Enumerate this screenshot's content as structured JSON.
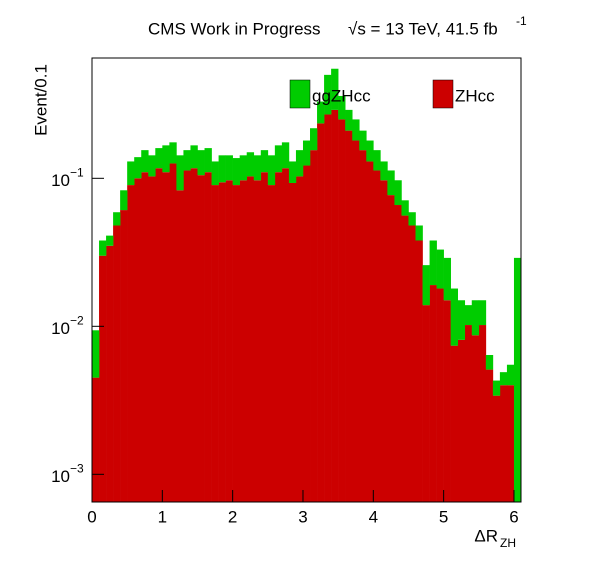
{
  "chart_data": {
    "type": "histogram",
    "stacked": true,
    "title": "CMS Work in Progress",
    "lumi": "√s = 13 TeV, 41.5 fb",
    "lumi_exponent": "-1",
    "x_label": "ΔR",
    "x_label_sub": "ZH",
    "y_label": "Event/0.1",
    "log_y": true,
    "legend": "top",
    "bins": [
      0,
      0.1,
      0.2,
      0.3,
      0.4,
      0.5,
      0.6,
      0.7,
      0.8,
      0.9,
      1,
      1.1,
      1.2,
      1.3,
      1.4,
      1.5,
      1.6,
      1.7,
      1.8,
      1.9,
      2,
      2.1,
      2.2,
      2.3,
      2.4,
      2.5,
      2.6,
      2.7,
      2.8,
      2.9,
      3,
      3.1,
      3.2,
      3.3,
      3.4,
      3.5,
      3.6,
      3.7,
      3.8,
      3.9,
      4,
      4.1,
      4.2,
      4.3,
      4.4,
      4.5,
      4.6,
      4.7,
      4.8,
      4.9,
      5,
      5.1,
      5.2,
      5.3,
      5.4,
      5.5,
      5.6,
      5.7,
      5.8,
      5.9,
      6,
      6.1
    ],
    "series": [
      {
        "name": "ZHcc",
        "color": "#cc0000",
        "values": [
          0.0045,
          0.03,
          0.035,
          0.048,
          0.061,
          0.09,
          0.1,
          0.11,
          0.103,
          0.117,
          0.11,
          0.126,
          0.083,
          0.113,
          0.117,
          0.105,
          0.11,
          0.09,
          0.094,
          0.097,
          0.09,
          0.097,
          0.103,
          0.097,
          0.11,
          0.09,
          0.11,
          0.117,
          0.093,
          0.103,
          0.122,
          0.155,
          0.235,
          0.27,
          0.29,
          0.25,
          0.21,
          0.18,
          0.155,
          0.13,
          0.113,
          0.097,
          0.077,
          0.066,
          0.056,
          0.048,
          0.038,
          0.0139,
          0.019,
          0.018,
          0.015,
          0.0074,
          0.0081,
          0.0102,
          0.0087,
          0.0102,
          0.0051,
          0.0034,
          0.004,
          0.004,
          0
        ]
      },
      {
        "name": "ggZHcc",
        "color": "#00cc00",
        "values": [
          0.0049,
          0.008,
          0.006,
          0.011,
          0.022,
          0.04,
          0.039,
          0.045,
          0.04,
          0.043,
          0.057,
          0.049,
          0.06,
          0.042,
          0.05,
          0.05,
          0.05,
          0.04,
          0.049,
          0.046,
          0.047,
          0.046,
          0.047,
          0.046,
          0.045,
          0.053,
          0.057,
          0.058,
          0.037,
          0.052,
          0.058,
          0.063,
          0.095,
          0.23,
          0.26,
          0.11,
          0.08,
          0.07,
          0.055,
          0.05,
          0.042,
          0.033,
          0.036,
          0.031,
          0.015,
          0.011,
          0.01,
          0.012,
          0.019,
          0.015,
          0.014,
          0.0106,
          0.0069,
          0.0037,
          0.0063,
          0.0048,
          0.0013,
          0.0009,
          0.0009,
          0.0015,
          0.029
        ]
      }
    ],
    "xlim": [
      0,
      6.1
    ],
    "xticks": [
      0,
      1,
      2,
      3,
      4,
      5,
      6
    ],
    "ylim": [
      0.00065,
      0.65
    ],
    "yticks": [
      {
        "value": 0.001,
        "label": "10",
        "exponent": "−3"
      },
      {
        "value": 0.01,
        "label": "10",
        "exponent": "−2"
      },
      {
        "value": 0.1,
        "label": "10",
        "exponent": "−1"
      }
    ]
  }
}
